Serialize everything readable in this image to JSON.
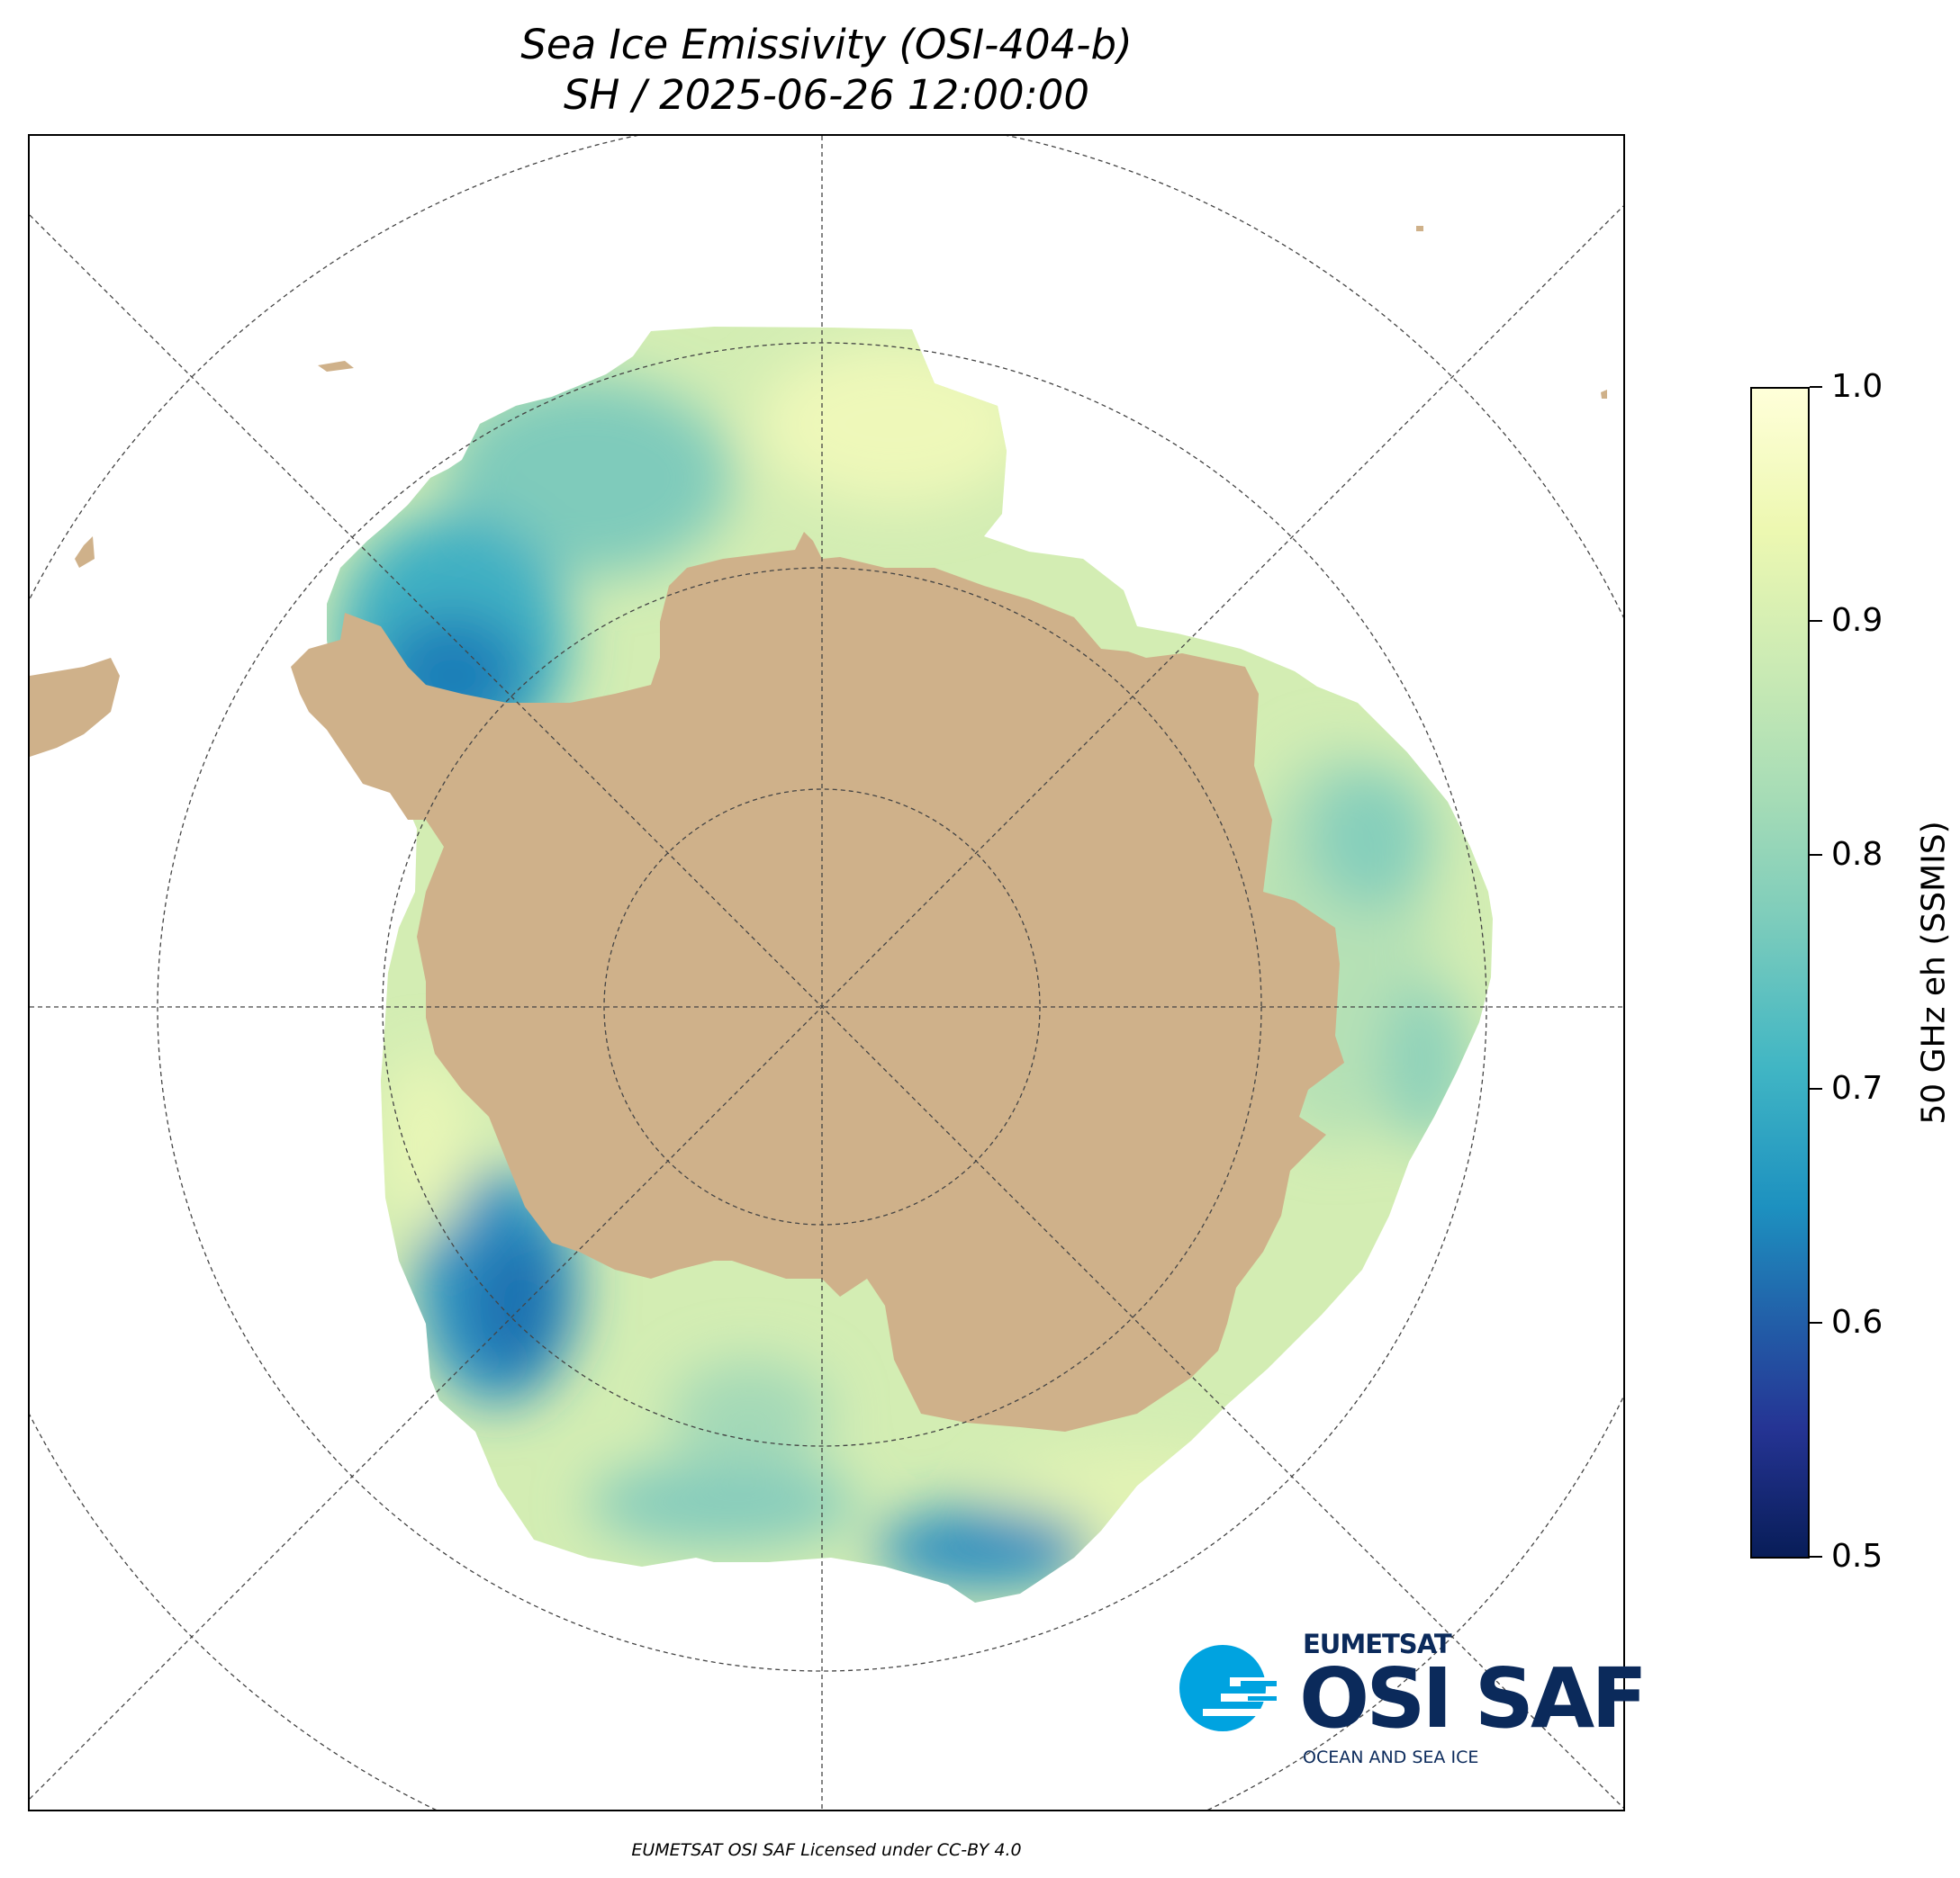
{
  "title": {
    "line1": "Sea Ice Emissivity (OSI-404-b)",
    "line2": "SH / 2025-06-26 12:00:00"
  },
  "colorbar": {
    "label": "50 GHz eh (SSMIS)",
    "range": [
      0.5,
      1.0
    ],
    "colormap": "YlGnBu (reversed)",
    "ticks": [
      {
        "value": 1.0,
        "label": "1.0"
      },
      {
        "value": 0.9,
        "label": "0.9"
      },
      {
        "value": 0.8,
        "label": "0.8"
      },
      {
        "value": 0.7,
        "label": "0.7"
      },
      {
        "value": 0.6,
        "label": "0.6"
      },
      {
        "value": 0.5,
        "label": "0.5"
      }
    ]
  },
  "map": {
    "projection": "south-polar-stereographic",
    "land_color": "#cfb18a",
    "graticule": "dashed"
  },
  "logo": {
    "line1": "EUMETSAT",
    "line2": "OSI SAF",
    "line3": "OCEAN AND SEA ICE",
    "colors": {
      "text": "#0b2a5b",
      "icon": "#00a3e0"
    }
  },
  "credit": "EUMETSAT OSI SAF Licensed under CC-BY 4.0"
}
